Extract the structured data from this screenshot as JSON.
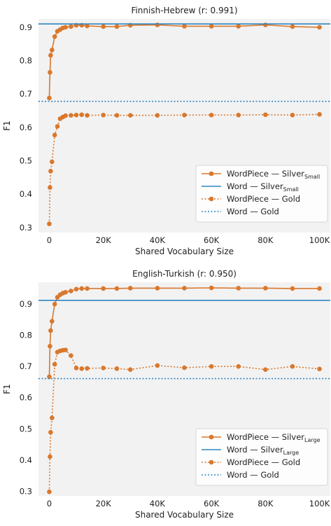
{
  "colors": {
    "wordpiece": "#d9782d",
    "word": "#2f86c1",
    "panel_bg": "#f2f2f2"
  },
  "chart_data": [
    {
      "type": "line",
      "title": "Finnish-Hebrew (r: 0.991)",
      "xlabel": "Shared Vocabulary Size",
      "ylabel": "F1",
      "xlim": [
        -4000,
        104000
      ],
      "ylim": [
        0.285,
        0.925
      ],
      "xticks": [
        0,
        20000,
        40000,
        60000,
        80000,
        100000
      ],
      "xtick_labels": [
        "0",
        "20K",
        "40K",
        "60K",
        "80K",
        "100K"
      ],
      "yticks": [
        0.3,
        0.4,
        0.5,
        0.6,
        0.7,
        0.8,
        0.9
      ],
      "ytick_labels": [
        "0.3",
        "0.4",
        "0.5",
        "0.6",
        "0.7",
        "0.8",
        "0.9"
      ],
      "grid": false,
      "legend_position": "bottom-right",
      "series": [
        {
          "name": "WordPiece — Silver",
          "name_sub": "Small",
          "style": "solid-marker",
          "color_key": "wordpiece",
          "x": [
            0,
            250,
            500,
            1000,
            2000,
            3000,
            4000,
            5000,
            6000,
            8000,
            10000,
            12000,
            14000,
            20000,
            25000,
            30000,
            40000,
            50000,
            60000,
            70000,
            80000,
            90000,
            100000
          ],
          "y": [
            0.688,
            0.765,
            0.816,
            0.832,
            0.872,
            0.888,
            0.893,
            0.898,
            0.9,
            0.902,
            0.906,
            0.906,
            0.904,
            0.902,
            0.902,
            0.906,
            0.907,
            0.903,
            0.903,
            0.903,
            0.907,
            0.902,
            0.9
          ]
        },
        {
          "name": "Word — Silver",
          "name_sub": "Small",
          "style": "solid-line",
          "color_key": "word",
          "y_constant": 0.91
        },
        {
          "name": "WordPiece — Gold",
          "name_sub": "",
          "style": "dotted-marker",
          "color_key": "wordpiece",
          "x": [
            0,
            250,
            500,
            1000,
            2000,
            3000,
            4000,
            5000,
            6000,
            8000,
            10000,
            12000,
            14000,
            20000,
            25000,
            30000,
            40000,
            50000,
            60000,
            70000,
            80000,
            90000,
            100000
          ],
          "y": [
            0.311,
            0.42,
            0.469,
            0.497,
            0.577,
            0.603,
            0.626,
            0.631,
            0.635,
            0.636,
            0.637,
            0.638,
            0.636,
            0.637,
            0.636,
            0.636,
            0.636,
            0.637,
            0.637,
            0.637,
            0.638,
            0.637,
            0.639
          ]
        },
        {
          "name": "Word — Gold",
          "name_sub": "",
          "style": "dotted-line",
          "color_key": "word",
          "y_constant": 0.678
        }
      ]
    },
    {
      "type": "line",
      "title": "English-Turkish (r: 0.950)",
      "xlabel": "Shared Vocabulary Size",
      "ylabel": "F1",
      "xlim": [
        -4000,
        104000
      ],
      "ylim": [
        0.285,
        0.97
      ],
      "xticks": [
        0,
        20000,
        40000,
        60000,
        80000,
        100000
      ],
      "xtick_labels": [
        "0",
        "20K",
        "40K",
        "60K",
        "80K",
        "100K"
      ],
      "yticks": [
        0.3,
        0.4,
        0.5,
        0.6,
        0.7,
        0.8,
        0.9
      ],
      "ytick_labels": [
        "0.3",
        "0.4",
        "0.5",
        "0.6",
        "0.7",
        "0.8",
        "0.9"
      ],
      "grid": false,
      "legend_position": "bottom-right",
      "series": [
        {
          "name": "WordPiece — Silver",
          "name_sub": "Large",
          "style": "solid-marker",
          "color_key": "wordpiece",
          "x": [
            0,
            250,
            500,
            1000,
            2000,
            3000,
            4000,
            5000,
            6000,
            8000,
            10000,
            12000,
            14000,
            20000,
            25000,
            30000,
            40000,
            50000,
            60000,
            70000,
            80000,
            90000,
            100000
          ],
          "y": [
            0.667,
            0.765,
            0.815,
            0.845,
            0.9,
            0.922,
            0.93,
            0.935,
            0.938,
            0.942,
            0.948,
            0.95,
            0.95,
            0.95,
            0.95,
            0.951,
            0.951,
            0.951,
            0.952,
            0.951,
            0.951,
            0.95,
            0.95
          ]
        },
        {
          "name": "Word — Silver",
          "name_sub": "Large",
          "style": "solid-line",
          "color_key": "word",
          "y_constant": 0.912
        },
        {
          "name": "WordPiece — Gold",
          "name_sub": "",
          "style": "dotted-marker",
          "color_key": "wordpiece",
          "x": [
            0,
            250,
            500,
            1000,
            2000,
            3000,
            4000,
            5000,
            6000,
            8000,
            10000,
            12000,
            14000,
            20000,
            25000,
            30000,
            40000,
            50000,
            60000,
            70000,
            80000,
            90000,
            100000
          ],
          "y": [
            0.298,
            0.411,
            0.489,
            0.535,
            0.707,
            0.746,
            0.75,
            0.752,
            0.753,
            0.735,
            0.695,
            0.693,
            0.694,
            0.695,
            0.693,
            0.69,
            0.703,
            0.696,
            0.7,
            0.7,
            0.69,
            0.7,
            0.692
          ]
        },
        {
          "name": "Word — Gold",
          "name_sub": "",
          "style": "dotted-line",
          "color_key": "word",
          "y_constant": 0.661
        }
      ]
    }
  ]
}
